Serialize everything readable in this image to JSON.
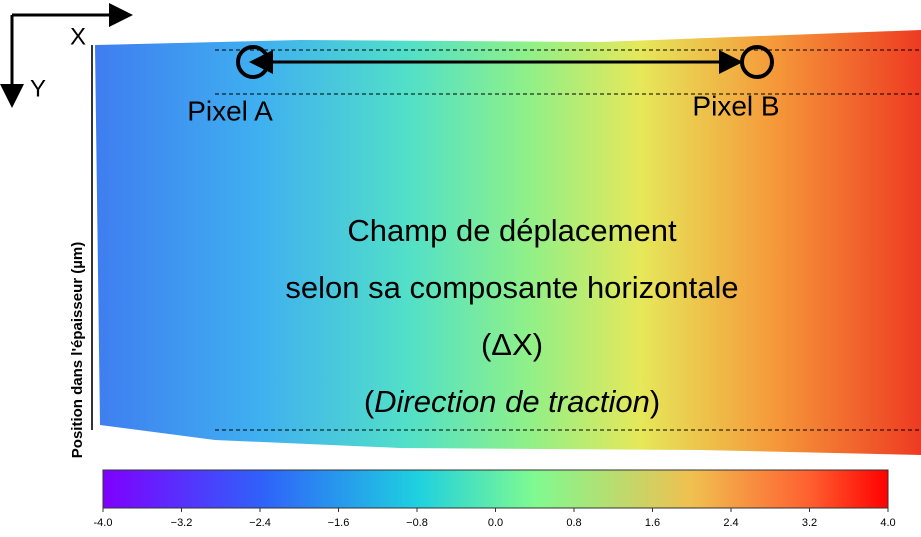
{
  "chart_data": {
    "type": "heatmap",
    "axes": {
      "x": "X",
      "y": "Y"
    },
    "ylabel": "Position dans l'épaisseur (µm)",
    "pixels": [
      "Pixel A",
      "Pixel B"
    ],
    "annotation": {
      "lines": [
        "Champ de déplacement",
        "selon sa composante horizontale",
        "(ΔX)"
      ],
      "last_line": [
        "(",
        "Direction de traction",
        ")"
      ]
    },
    "colorbar": {
      "xlim": [
        -4,
        4
      ],
      "xticks": [
        {
          "value": -4,
          "label": "-4.0"
        },
        {
          "value": -3.2,
          "label": "−3.2"
        },
        {
          "value": -2.4,
          "label": "−2.4"
        },
        {
          "value": -1.6,
          "label": "−1.6"
        },
        {
          "value": -0.8,
          "label": "−0.8"
        },
        {
          "value": 0,
          "label": "0.0"
        },
        {
          "value": 0.8,
          "label": "0.8"
        },
        {
          "value": 1.6,
          "label": "1.6"
        },
        {
          "value": 2.4,
          "label": "2.4"
        },
        {
          "value": 3.2,
          "label": "3.2"
        },
        {
          "value": 4,
          "label": "4.0"
        }
      ]
    }
  }
}
